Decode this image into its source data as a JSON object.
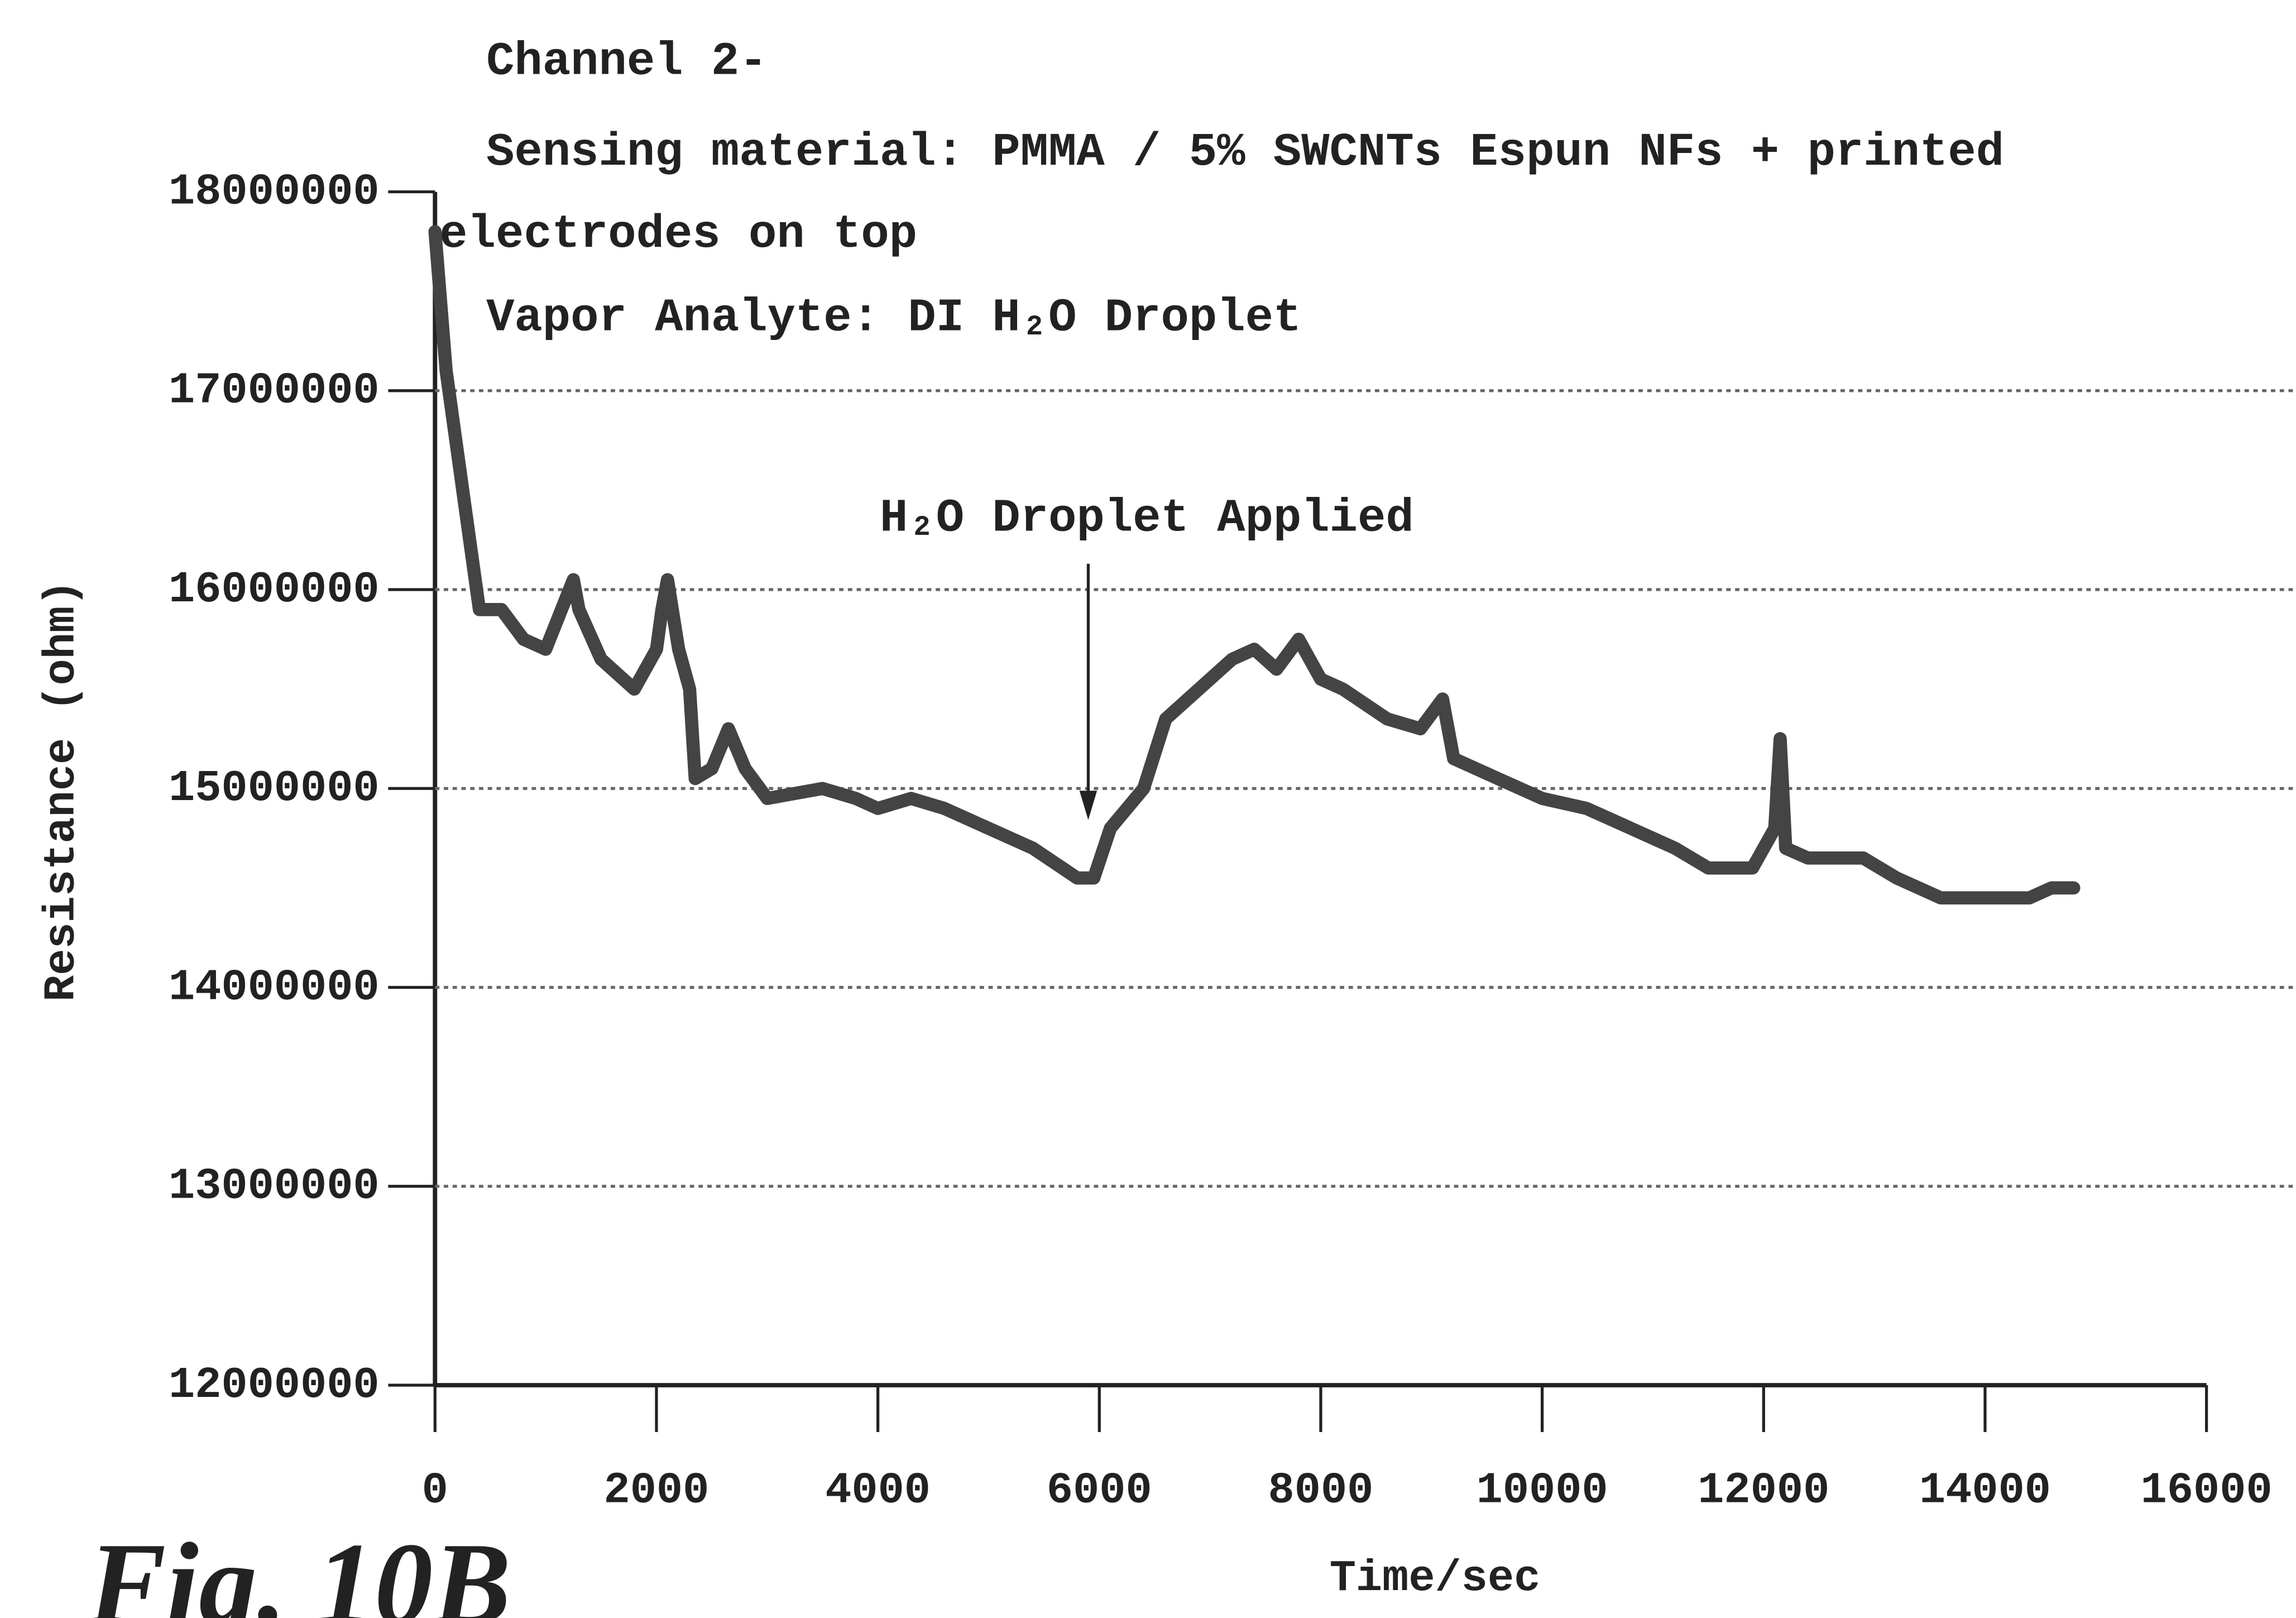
{
  "chart_data": {
    "type": "line",
    "title": [
      "Channel 2-",
      "Sensing material: PMMA / 5% SWCNTs Espun NFs + printed",
      "electrodes on top",
      "Vapor Analyte: DI H₂O Droplet"
    ],
    "xlabel": "Time/sec",
    "ylabel": "Resistance (ohm)",
    "figure_label": "Fig. 10B",
    "annotation": {
      "text": "H₂O Droplet Applied",
      "x": 5900
    },
    "xlim": [
      0,
      16000
    ],
    "ylim": [
      12000000,
      18000000
    ],
    "xticks": [
      0,
      2000,
      4000,
      6000,
      8000,
      10000,
      12000,
      14000,
      16000
    ],
    "yticks": [
      12000000,
      13000000,
      14000000,
      15000000,
      16000000,
      17000000,
      18000000
    ],
    "grid": true,
    "series": [
      {
        "color": "#444444",
        "x": [
          0,
          100,
          300,
          400,
          600,
          800,
          1000,
          1250,
          1300,
          1500,
          1800,
          2000,
          2050,
          2100,
          2200,
          2300,
          2350,
          2500,
          2650,
          2800,
          3000,
          3500,
          3800,
          4000,
          4300,
          4600,
          5000,
          5400,
          5800,
          5950,
          6100,
          6400,
          6600,
          6900,
          7200,
          7400,
          7600,
          7800,
          8000,
          8200,
          8600,
          8900,
          9100,
          9200,
          9600,
          10000,
          10400,
          10800,
          11200,
          11500,
          11900,
          12100,
          12150,
          12200,
          12400,
          12600,
          12900,
          13200,
          13600,
          14000,
          14400,
          14600,
          14800
        ],
        "values": [
          17800000,
          17100000,
          16300000,
          15900000,
          15900000,
          15750000,
          15700000,
          16050000,
          15900000,
          15650000,
          15500000,
          15700000,
          15900000,
          16050000,
          15700000,
          15500000,
          15050000,
          15100000,
          15300000,
          15100000,
          14950000,
          15000000,
          14950000,
          14900000,
          14950000,
          14900000,
          14800000,
          14700000,
          14550000,
          14550000,
          14800000,
          15000000,
          15350000,
          15500000,
          15650000,
          15700000,
          15600000,
          15750000,
          15550000,
          15500000,
          15350000,
          15300000,
          15450000,
          15150000,
          15050000,
          14950000,
          14900000,
          14800000,
          14700000,
          14600000,
          14600000,
          14800000,
          15250000,
          14700000,
          14650000,
          14650000,
          14650000,
          14550000,
          14450000,
          14450000,
          14450000,
          14500000,
          14500000
        ]
      }
    ]
  }
}
